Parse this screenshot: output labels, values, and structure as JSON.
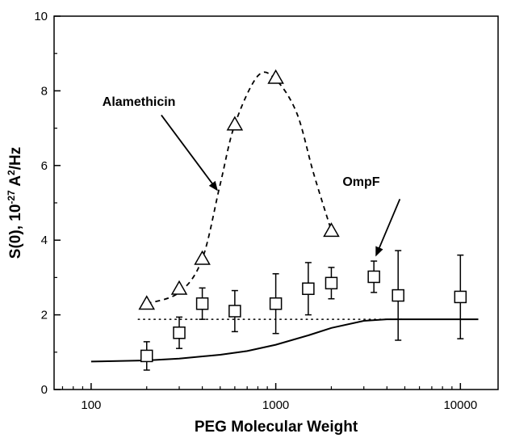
{
  "chart_data": {
    "type": "scatter",
    "x_scale": "log",
    "xlabel": "PEG Molecular Weight",
    "ylabel_main": "S(0), 10",
    "ylabel_exp": "-27",
    "ylabel_unit_a": " A",
    "ylabel_unit_exp": "2",
    "ylabel_unit_b": "/Hz",
    "xlim": [
      63,
      16000
    ],
    "ylim": [
      0,
      10
    ],
    "x_ticks": [
      100,
      1000,
      10000
    ],
    "x_tick_labels": [
      "100",
      "1000",
      "10000"
    ],
    "y_ticks": [
      0,
      2,
      4,
      6,
      8,
      10
    ],
    "y_tick_labels": [
      "0",
      "2",
      "4",
      "6",
      "8",
      "10"
    ],
    "grid": false,
    "series": [
      {
        "name": "Alamethicin",
        "marker": "triangle",
        "points": [
          {
            "x": 200,
            "y": 2.3
          },
          {
            "x": 300,
            "y": 2.7
          },
          {
            "x": 400,
            "y": 3.5
          },
          {
            "x": 600,
            "y": 7.1
          },
          {
            "x": 1000,
            "y": 8.35
          },
          {
            "x": 2000,
            "y": 4.25
          }
        ],
        "trend": [
          {
            "x": 200,
            "y": 2.3
          },
          {
            "x": 300,
            "y": 2.6
          },
          {
            "x": 400,
            "y": 3.5
          },
          {
            "x": 500,
            "y": 5.5
          },
          {
            "x": 600,
            "y": 7.1
          },
          {
            "x": 800,
            "y": 8.4
          },
          {
            "x": 1000,
            "y": 8.3
          },
          {
            "x": 1300,
            "y": 7.4
          },
          {
            "x": 1600,
            "y": 5.8
          },
          {
            "x": 2000,
            "y": 4.25
          }
        ]
      },
      {
        "name": "OmpF",
        "marker": "square",
        "points": [
          {
            "x": 200,
            "y": 0.9,
            "err": 0.38
          },
          {
            "x": 300,
            "y": 1.52,
            "err": 0.42
          },
          {
            "x": 400,
            "y": 2.3,
            "err": 0.42
          },
          {
            "x": 600,
            "y": 2.1,
            "err": 0.55
          },
          {
            "x": 1000,
            "y": 2.3,
            "err": 0.8
          },
          {
            "x": 1500,
            "y": 2.7,
            "err": 0.7
          },
          {
            "x": 2000,
            "y": 2.85,
            "err": 0.42
          },
          {
            "x": 3400,
            "y": 3.02,
            "err": 0.42
          },
          {
            "x": 4600,
            "y": 2.52,
            "err": 1.2
          },
          {
            "x": 10000,
            "y": 2.48,
            "err": 1.12
          }
        ]
      }
    ],
    "reference_lines": [
      {
        "style": "dotted",
        "y": 1.88,
        "x_range": [
          180,
          5000
        ]
      },
      {
        "style": "solid",
        "points": [
          {
            "x": 100,
            "y": 0.75
          },
          {
            "x": 200,
            "y": 0.78
          },
          {
            "x": 300,
            "y": 0.83
          },
          {
            "x": 500,
            "y": 0.93
          },
          {
            "x": 700,
            "y": 1.03
          },
          {
            "x": 1000,
            "y": 1.2
          },
          {
            "x": 1500,
            "y": 1.45
          },
          {
            "x": 2000,
            "y": 1.65
          },
          {
            "x": 3000,
            "y": 1.84
          },
          {
            "x": 4000,
            "y": 1.88
          },
          {
            "x": 12500,
            "y": 1.88
          }
        ]
      }
    ],
    "annotations": [
      {
        "text": "Alamethicin",
        "label_at": {
          "x": 115,
          "y": 7.6
        },
        "arrow_from": {
          "x": 240,
          "y": 7.35
        },
        "arrow_to": {
          "x": 480,
          "y": 5.35
        }
      },
      {
        "text": "OmpF",
        "label_at": {
          "x": 2300,
          "y": 5.45
        },
        "arrow_from": {
          "x": 4700,
          "y": 5.1
        },
        "arrow_to": {
          "x": 3500,
          "y": 3.6
        }
      }
    ]
  }
}
